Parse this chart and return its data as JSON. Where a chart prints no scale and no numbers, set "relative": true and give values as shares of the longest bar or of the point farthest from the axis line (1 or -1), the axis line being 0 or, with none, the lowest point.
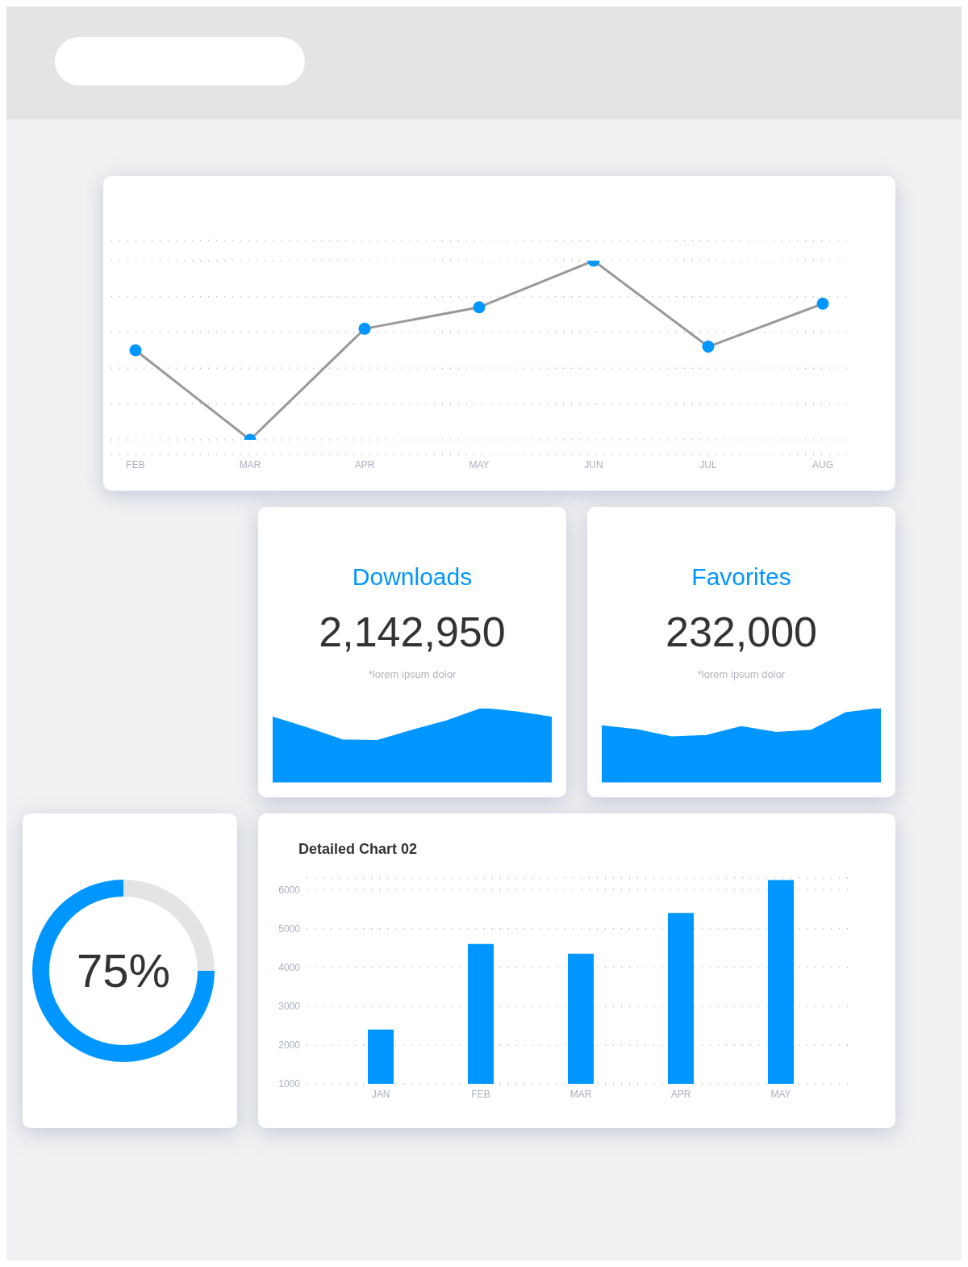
{
  "chart_data": [
    {
      "type": "line",
      "relative": true,
      "tick_labels": "x",
      "grid": true,
      "marker": "circle",
      "line_style": "solid",
      "categories": [
        "FEB",
        "MAR",
        "APR",
        "MAY",
        "JUN",
        "JUL",
        "AUG"
      ],
      "series": [
        {
          "color": "#999999",
          "colors": [
            "#0096ff",
            "#0096ff",
            "#0096ff",
            "#0096ff",
            "#0096ff",
            "#0096ff",
            "#0096ff"
          ],
          "values": [
            0.5,
            0,
            0.62,
            0.74,
            1,
            0.52,
            0.76
          ]
        }
      ]
    },
    {
      "type": "area",
      "relative": true,
      "tick_labels": false,
      "title": "Downloads",
      "annotations": [
        "2,142,950",
        "*lorem ipsum dolor"
      ],
      "categories": [
        null,
        null,
        null,
        null,
        null,
        null,
        null,
        null,
        null
      ],
      "series": [
        {
          "color": "#0096ff",
          "values": [
            0.88,
            0.73,
            0.57,
            0.56,
            0.7,
            0.83,
            1,
            0.95,
            0.88
          ]
        }
      ]
    },
    {
      "type": "area",
      "relative": true,
      "tick_labels": false,
      "title": "Favorites",
      "annotations": [
        "232,000",
        "*lorem ipsum dolor"
      ],
      "categories": [
        null,
        null,
        null,
        null,
        null,
        null,
        null,
        null,
        null
      ],
      "series": [
        {
          "color": "#0096ff",
          "values": [
            0.76,
            0.71,
            0.61,
            0.63,
            0.75,
            0.67,
            0.7,
            0.94,
            1
          ]
        }
      ]
    },
    {
      "type": "donut",
      "annotations": [
        "75%"
      ],
      "categories": [
        null,
        null
      ],
      "values": [
        75,
        25
      ],
      "colors": [
        "#0096ff",
        "#e4e4e4"
      ]
    },
    {
      "type": "bar",
      "title": "Detailed Chart 02",
      "grid": "y",
      "categories": [
        "JAN",
        "FEB",
        "MAR",
        "APR",
        "MAY"
      ],
      "ylim": [
        1000,
        6300
      ],
      "yticks": [
        1000,
        2000,
        3000,
        4000,
        5000,
        6000
      ],
      "series": [
        {
          "color": "#0096ff",
          "values": [
            2400,
            4600,
            4350,
            5400,
            6250
          ]
        }
      ]
    }
  ]
}
